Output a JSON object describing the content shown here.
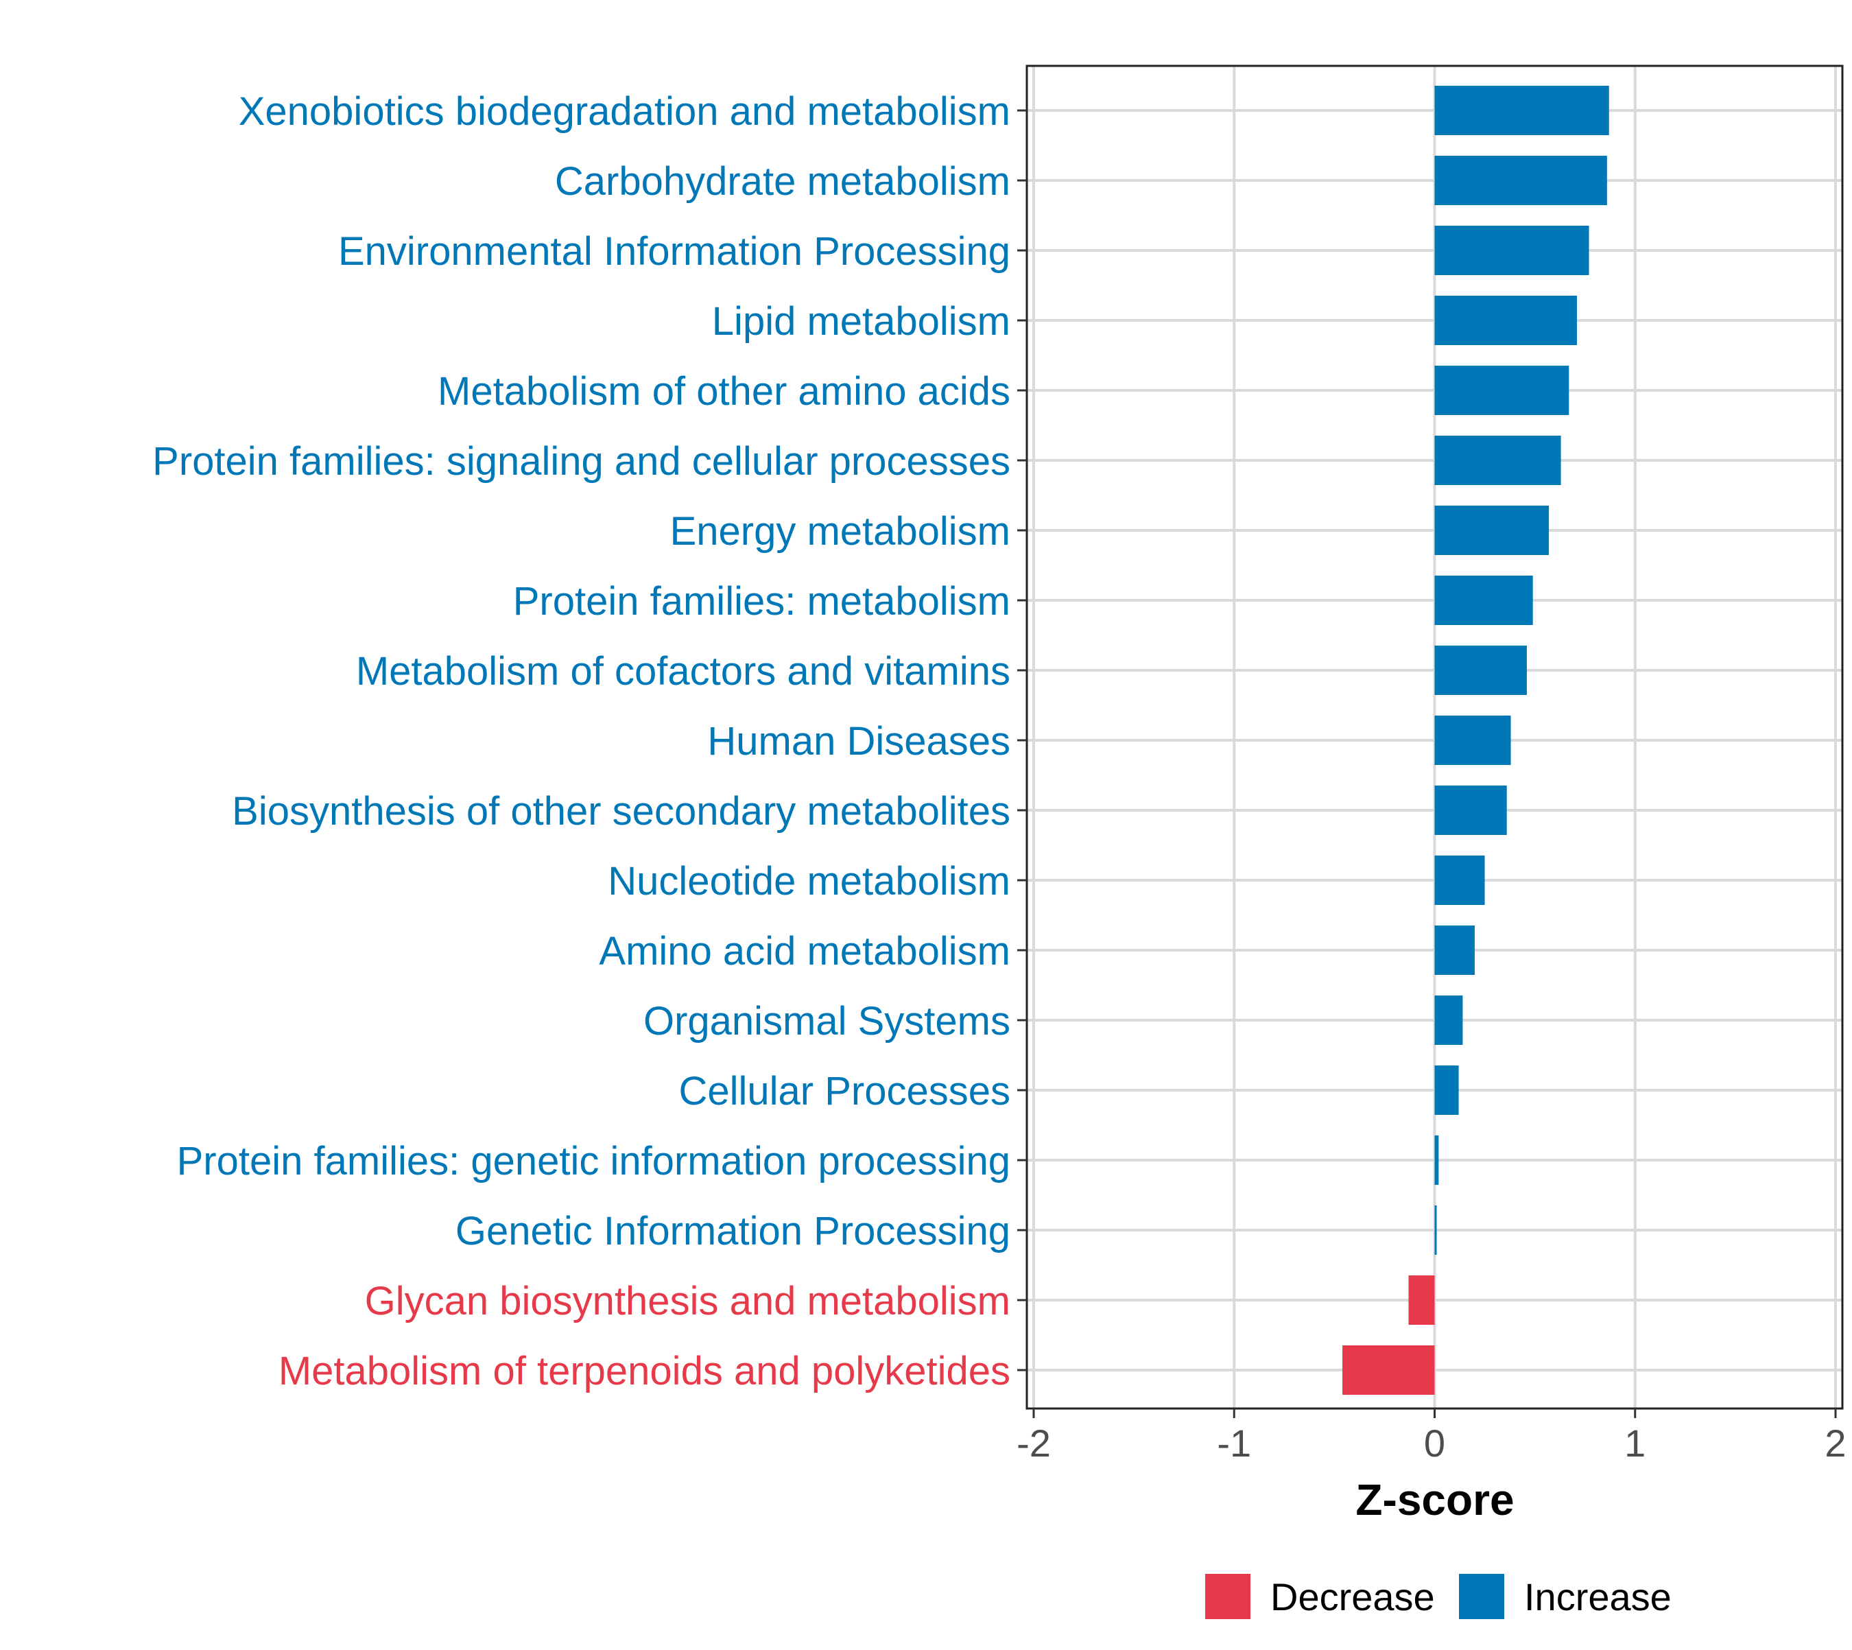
{
  "chart_data": {
    "type": "bar",
    "orientation": "horizontal",
    "xlabel": "Z-score",
    "ylabel": "",
    "xlim": [
      -2,
      2
    ],
    "x_ticks": [
      "-2",
      "-1",
      "0",
      "1",
      "2"
    ],
    "grid": true,
    "legend_position": "bottom",
    "colors": {
      "Decrease": "#e63a4a",
      "Increase": "#0077b6"
    },
    "legend": [
      {
        "label": "Decrease",
        "color": "#e63a4a"
      },
      {
        "label": "Increase",
        "color": "#0077b6"
      }
    ],
    "categories": [
      "Xenobiotics biodegradation and metabolism",
      "Carbohydrate metabolism",
      "Environmental Information Processing",
      "Lipid metabolism",
      "Metabolism of other amino acids",
      "Protein families: signaling and cellular processes",
      "Energy metabolism",
      "Protein families: metabolism",
      "Metabolism of cofactors and vitamins",
      "Human Diseases",
      "Biosynthesis of other secondary metabolites",
      "Nucleotide metabolism",
      "Amino acid metabolism",
      "Organismal Systems",
      "Cellular Processes",
      "Protein families: genetic information processing",
      "Genetic Information Processing",
      "Glycan biosynthesis and metabolism",
      "Metabolism of terpenoids and polyketides"
    ],
    "values": [
      0.87,
      0.86,
      0.77,
      0.71,
      0.67,
      0.63,
      0.57,
      0.49,
      0.46,
      0.38,
      0.36,
      0.25,
      0.2,
      0.14,
      0.12,
      0.02,
      0.01,
      -0.13,
      -0.46
    ],
    "groups": [
      "Increase",
      "Increase",
      "Increase",
      "Increase",
      "Increase",
      "Increase",
      "Increase",
      "Increase",
      "Increase",
      "Increase",
      "Increase",
      "Increase",
      "Increase",
      "Increase",
      "Increase",
      "Increase",
      "Increase",
      "Decrease",
      "Decrease"
    ]
  }
}
